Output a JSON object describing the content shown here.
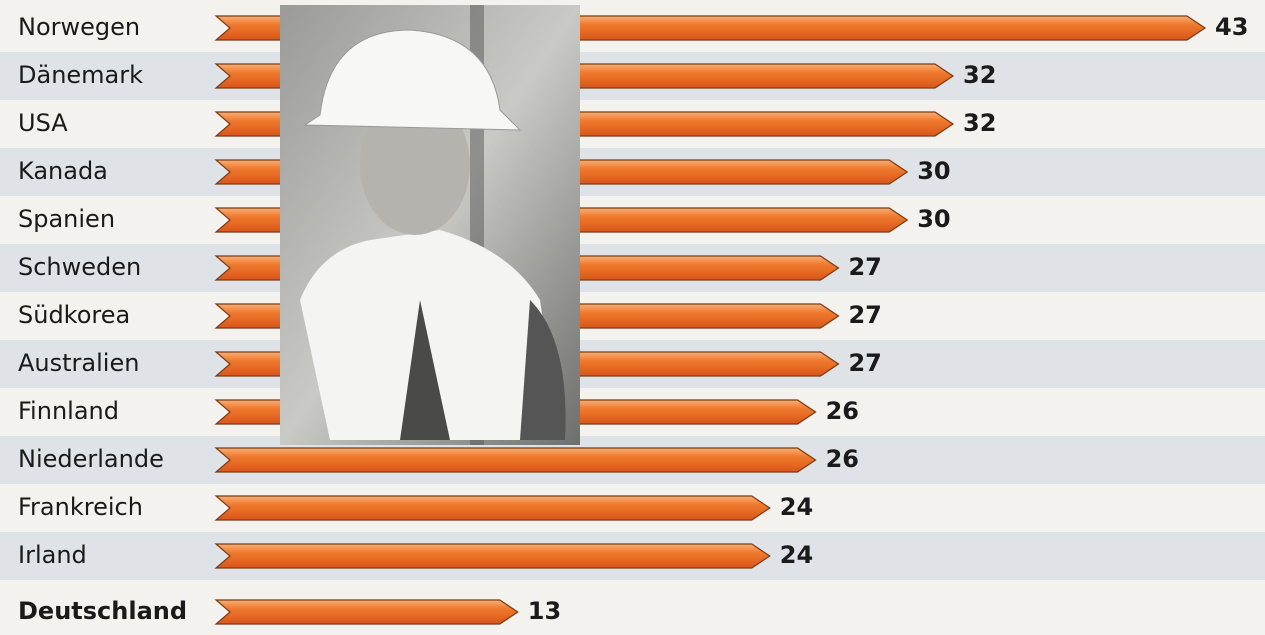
{
  "chart_data": {
    "type": "bar",
    "categories": [
      "Norwegen",
      "Dänemark",
      "USA",
      "Kanada",
      "Spanien",
      "Schweden",
      "Südkorea",
      "Australien",
      "Finnland",
      "Niederlande",
      "Frankreich",
      "Irland",
      "Deutschland"
    ],
    "values": [
      43,
      32,
      32,
      30,
      30,
      27,
      27,
      27,
      26,
      26,
      24,
      24,
      13
    ],
    "color": "#f07a2e"
  }
}
